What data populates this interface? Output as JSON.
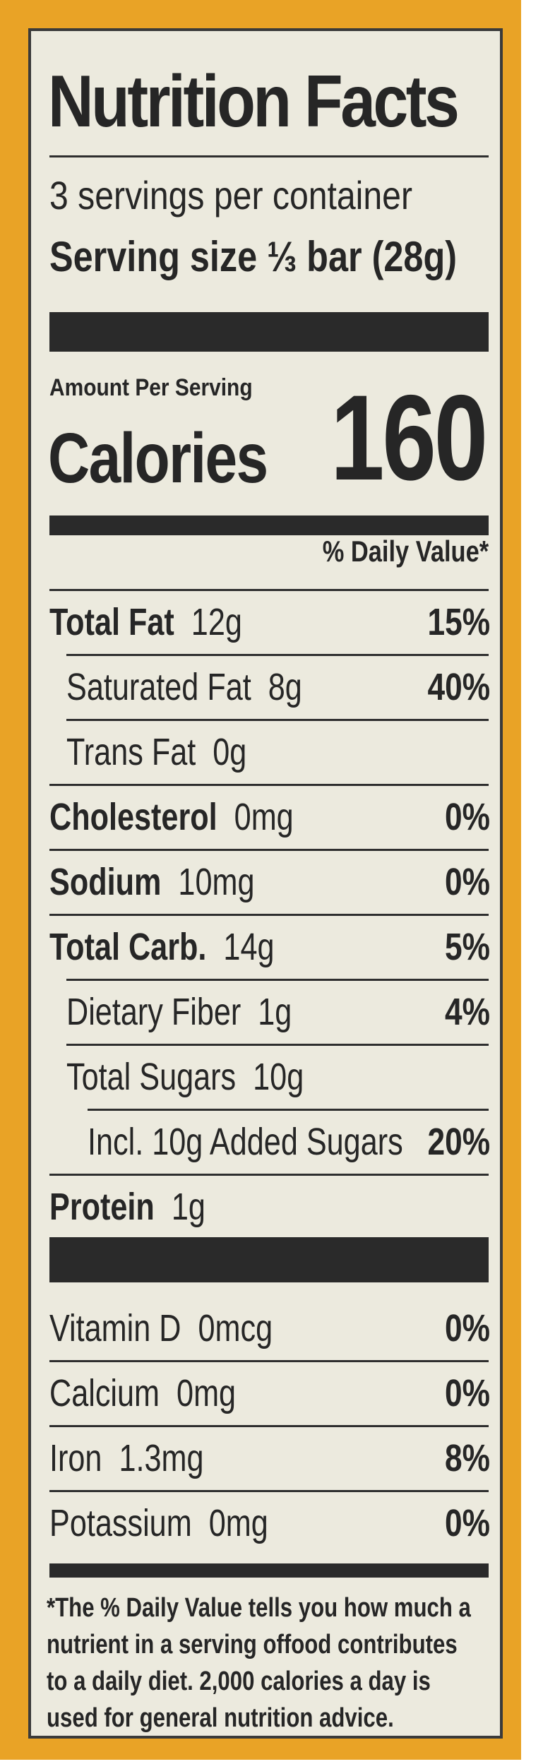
{
  "label": {
    "title": "Nutrition Facts",
    "servings_per_container": "3 servings per container",
    "serving_size": "Serving size ⅓ bar (28g)",
    "amount_per_serving": "Amount Per Serving",
    "calories_label": "Calories",
    "calories_value": "160",
    "daily_value_header": "% Daily Value*",
    "nutrients": [
      {
        "name": "Total Fat",
        "amount": "12g",
        "dv": "15%",
        "bold": true,
        "indent": 0
      },
      {
        "name": "Saturated Fat",
        "amount": "8g",
        "dv": "40%",
        "bold": false,
        "indent": 1
      },
      {
        "name": "Trans Fat",
        "amount": "0g",
        "dv": "",
        "bold": false,
        "indent": 1
      },
      {
        "name": "Cholesterol",
        "amount": "0mg",
        "dv": "0%",
        "bold": true,
        "indent": 0
      },
      {
        "name": "Sodium",
        "amount": "10mg",
        "dv": "0%",
        "bold": true,
        "indent": 0
      },
      {
        "name": "Total Carb.",
        "amount": "14g",
        "dv": "5%",
        "bold": true,
        "indent": 0
      },
      {
        "name": "Dietary Fiber",
        "amount": "1g",
        "dv": "4%",
        "bold": false,
        "indent": 1
      },
      {
        "name": "Total Sugars",
        "amount": "10g",
        "dv": "",
        "bold": false,
        "indent": 1
      },
      {
        "name": "Incl. 10g Added Sugars",
        "amount": "",
        "dv": "20%",
        "bold": false,
        "indent": 2
      },
      {
        "name": "Protein",
        "amount": "1g",
        "dv": "",
        "bold": true,
        "indent": 0
      }
    ],
    "vitamins": [
      {
        "name": "Vitamin D",
        "amount": "0mcg",
        "dv": "0%"
      },
      {
        "name": "Calcium",
        "amount": "0mg",
        "dv": "0%"
      },
      {
        "name": "Iron",
        "amount": "1.3mg",
        "dv": "8%"
      },
      {
        "name": "Potassium",
        "amount": "0mg",
        "dv": "0%"
      }
    ],
    "footnote_lines": [
      "*The % Daily Value tells you how much a",
      "nutrient in a serving offood contributes",
      "to a daily diet. 2,000 calories a day is",
      "used for general nutrition advice."
    ]
  },
  "colors": {
    "package": "#e9a326",
    "panel": "#eceade",
    "ink": "#262626"
  }
}
